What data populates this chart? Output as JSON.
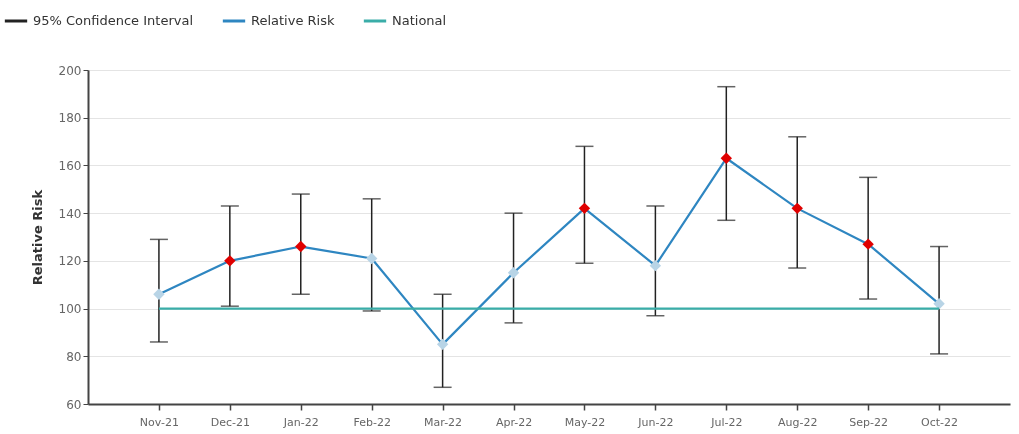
{
  "chart_data": {
    "type": "line",
    "ylabel": "Relative Risk",
    "categories": [
      "Nov-21",
      "Dec-21",
      "Jan-22",
      "Feb-22",
      "Mar-22",
      "Apr-22",
      "May-22",
      "Jun-22",
      "Jul-22",
      "Aug-22",
      "Sep-22",
      "Oct-22"
    ],
    "series": [
      {
        "name": "Relative Risk",
        "color": "#2e86c1",
        "values": [
          106,
          120,
          126,
          121,
          85,
          115,
          142,
          118,
          163,
          142,
          127,
          102
        ],
        "colors": [
          "#b8d4e6",
          "#e00000",
          "#e00000",
          "#b8d4e6",
          "#b8d4e6",
          "#b8d4e6",
          "#e00000",
          "#b8d4e6",
          "#e00000",
          "#e00000",
          "#e00000",
          "#b8d4e6"
        ],
        "errors": [
          [
            86,
            129
          ],
          [
            101,
            143
          ],
          [
            106,
            148
          ],
          [
            99,
            146
          ],
          [
            67,
            106
          ],
          [
            94,
            140
          ],
          [
            119,
            168
          ],
          [
            97,
            143
          ],
          [
            137,
            193
          ],
          [
            117,
            172
          ],
          [
            104,
            155
          ],
          [
            81,
            126
          ]
        ],
        "marker": "diamond"
      },
      {
        "name": "National",
        "color": "#3aada8",
        "values": [
          100,
          100,
          100,
          100,
          100,
          100,
          100,
          100,
          100,
          100,
          100,
          100
        ],
        "marker": "none"
      }
    ],
    "ylim": [
      60,
      200
    ],
    "yticks": [
      60,
      80,
      100,
      120,
      140,
      160,
      180,
      200
    ],
    "grid": "y",
    "legend": "top left",
    "annotations": [
      "95% Confidence Interval"
    ]
  }
}
